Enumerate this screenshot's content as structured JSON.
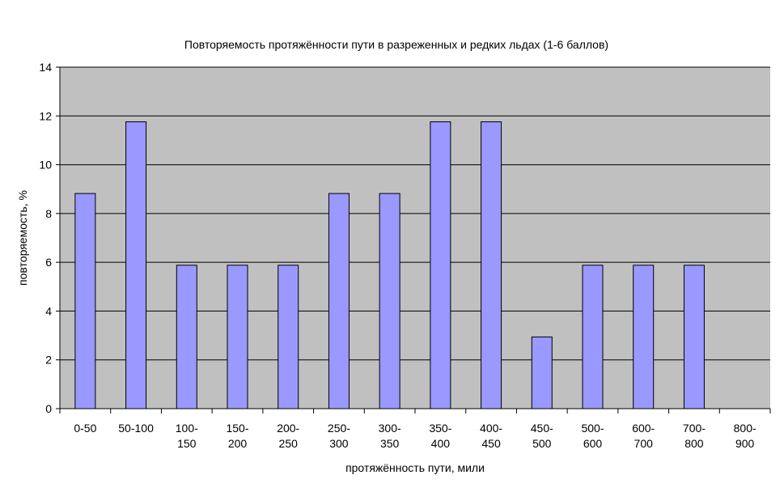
{
  "chart_data": {
    "type": "bar",
    "title": "Повторяемость протяжённости пути в разреженных и редких льдах (1-6 баллов)",
    "xlabel": "протяжённость пути, мили",
    "ylabel": "повторяемость, %",
    "categories": [
      [
        "0-50"
      ],
      [
        "50-100"
      ],
      [
        "100-",
        "150"
      ],
      [
        "150-",
        "200"
      ],
      [
        "200-",
        "250"
      ],
      [
        "250-",
        "300"
      ],
      [
        "300-",
        "350"
      ],
      [
        "350-",
        "400"
      ],
      [
        "400-",
        "450"
      ],
      [
        "450-",
        "500"
      ],
      [
        "500-",
        "600"
      ],
      [
        "600-",
        "700"
      ],
      [
        "700-",
        "800"
      ],
      [
        "800-",
        "900"
      ]
    ],
    "values": [
      8.82,
      11.76,
      5.88,
      5.88,
      5.88,
      8.82,
      8.82,
      11.76,
      11.76,
      2.94,
      5.88,
      5.88,
      5.88,
      0
    ],
    "ylim": [
      0,
      14
    ],
    "yticks": [
      0,
      2,
      4,
      6,
      8,
      10,
      12,
      14
    ],
    "grid": true,
    "legend": "none",
    "colors": {
      "bar_fill": "#9999ff",
      "bar_stroke": "#000000",
      "plot_background": "#c0c0c0",
      "gridline": "#000000"
    }
  }
}
